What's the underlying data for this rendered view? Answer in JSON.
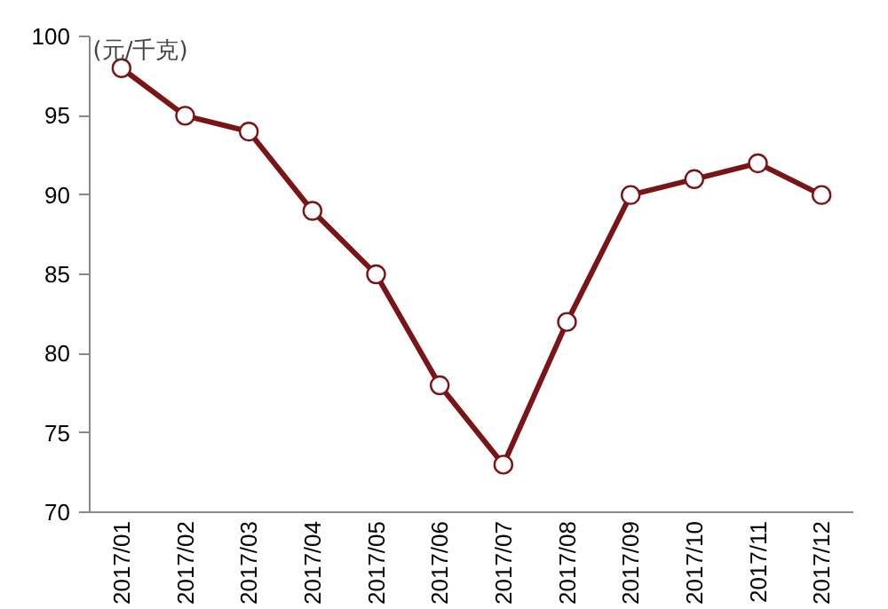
{
  "chart_data": {
    "type": "line",
    "ylabel": "(元/千克)",
    "categories": [
      "2017/01",
      "2017/02",
      "2017/03",
      "2017/04",
      "2017/05",
      "2017/06",
      "2017/07",
      "2017/08",
      "2017/09",
      "2017/10",
      "2017/11",
      "2017/12"
    ],
    "series": [
      {
        "color": "#7b1416",
        "values": [
          98,
          95,
          94,
          89,
          85,
          78,
          73,
          82,
          90,
          91,
          92,
          90
        ]
      }
    ],
    "ylim": [
      70,
      100
    ],
    "yticks": [
      70,
      75,
      80,
      85,
      90,
      95,
      100
    ],
    "grid": false,
    "marker": "circle",
    "line_style": "solid"
  }
}
